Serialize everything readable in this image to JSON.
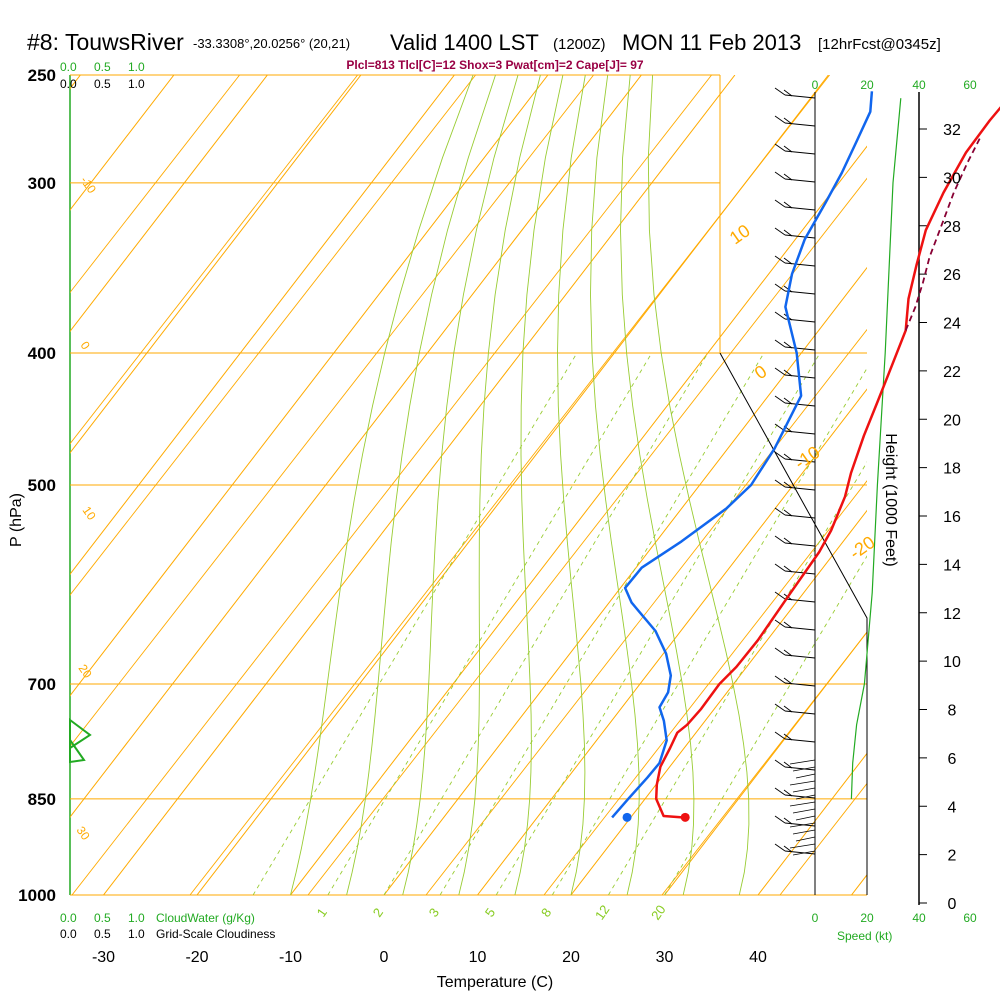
{
  "header": {
    "station": "#8: TouwsRiver",
    "coords": "-33.3308°,20.0256° (20,21)",
    "valid": "Valid 1400 LST",
    "zulu": "(1200Z)",
    "date": "MON 11 Feb 2013",
    "forecast": "[12hrFcst@0345z]",
    "indices": "Plcl=813 Tlcl[C]=12 Shox=3 Pwat[cm]=2 Cape[J]= 97"
  },
  "axes": {
    "xlabel": "Temperature (C)",
    "ylabel": "P (hPa)",
    "height_label": "Height (1000 Feet)",
    "speed_label": "Speed (kt)",
    "cloudwater_label": "CloudWater (g/Kg)",
    "cloudiness_label": "Grid-Scale Cloudiness",
    "cloudwater_ticks": [
      "0.0",
      "0.5",
      "1.0"
    ],
    "cloudiness_ticks": [
      "0.0",
      "0.5",
      "1.0"
    ],
    "speed_ticks": [
      "0",
      "20",
      "40",
      "60"
    ]
  },
  "chart_data": {
    "type": "line",
    "title": "#8: TouwsRiver Valid 1400 LST MON 11 Feb 2013",
    "xlabel": "Temperature (C)",
    "ylabel": "P (hPa)",
    "x_range": [
      -35,
      47
    ],
    "p_range": [
      250,
      1000
    ],
    "temp_ticks": [
      -30,
      -20,
      -10,
      0,
      10,
      20,
      30,
      40
    ],
    "pressure_ticks": [
      250,
      300,
      400,
      500,
      700,
      850,
      1000
    ],
    "height_ticks_kft": [
      0,
      2,
      4,
      6,
      8,
      10,
      12,
      14,
      16,
      18,
      20,
      22,
      24,
      26,
      28,
      30,
      32
    ],
    "dry_adiabat_labels": [
      "-10",
      "0",
      "10",
      "20",
      "30",
      "10",
      "0",
      "-10",
      "-20",
      "-30"
    ],
    "mixing_ratio_labels": [
      "1",
      "2",
      "3",
      "5",
      "8",
      "12",
      "20"
    ],
    "series": [
      {
        "name": "Temperature",
        "color": "#ee1111",
        "points": [
          [
            25.5,
            877
          ],
          [
            23.4,
            875
          ],
          [
            21.2,
            850
          ],
          [
            20.1,
            830
          ],
          [
            19.0,
            805
          ],
          [
            18.5,
            780
          ],
          [
            18.0,
            760
          ],
          [
            18.4,
            750
          ],
          [
            18.6,
            730
          ],
          [
            18.5,
            700
          ],
          [
            18.9,
            680
          ],
          [
            19.0,
            650
          ],
          [
            18.6,
            600
          ],
          [
            18.3,
            560
          ],
          [
            17.8,
            540
          ],
          [
            16.5,
            510
          ],
          [
            15.2,
            490
          ],
          [
            13.5,
            460
          ],
          [
            12.2,
            435
          ],
          [
            10.8,
            410
          ],
          [
            9.3,
            385
          ],
          [
            7.0,
            365
          ],
          [
            5.1,
            345
          ],
          [
            3.2,
            325
          ],
          [
            2.0,
            305
          ],
          [
            1.1,
            285
          ],
          [
            1.0,
            270
          ],
          [
            1.2,
            258
          ]
        ]
      },
      {
        "name": "Dewpoint",
        "color": "#1166ee",
        "points": [
          [
            18.0,
            877
          ],
          [
            18.2,
            850
          ],
          [
            18.5,
            820
          ],
          [
            18.6,
            800
          ],
          [
            17.5,
            770
          ],
          [
            15.6,
            745
          ],
          [
            14.0,
            728
          ],
          [
            13.7,
            710
          ],
          [
            12.6,
            690
          ],
          [
            10.3,
            665
          ],
          [
            7.3,
            640
          ],
          [
            2.4,
            610
          ],
          [
            0.5,
            595
          ],
          [
            0.6,
            575
          ],
          [
            2.7,
            550
          ],
          [
            4.8,
            520
          ],
          [
            5.5,
            500
          ],
          [
            5.0,
            470
          ],
          [
            3.5,
            430
          ],
          [
            -0.5,
            400
          ],
          [
            -5.5,
            370
          ],
          [
            -7.5,
            350
          ],
          [
            -9.0,
            330
          ],
          [
            -9.8,
            310
          ],
          [
            -10.5,
            295
          ],
          [
            -11.5,
            280
          ],
          [
            -12.5,
            266
          ],
          [
            -14.0,
            257
          ]
        ]
      },
      {
        "name": "Parcel",
        "color": "#880033",
        "points": [
          [
            9.3,
            385
          ],
          [
            8.4,
            370
          ],
          [
            7.2,
            355
          ],
          [
            5.8,
            340
          ],
          [
            4.3,
            320
          ],
          [
            3.1,
            305
          ],
          [
            2.1,
            290
          ],
          [
            1.4,
            278
          ]
        ]
      }
    ],
    "surface_temp": 25.5,
    "surface_dewpoint": 18.0,
    "wind_speed_profile_kt": [
      [
        14,
        850
      ],
      [
        14.5,
        800
      ],
      [
        16,
        750
      ],
      [
        19,
        700
      ],
      [
        22,
        600
      ],
      [
        24,
        500
      ],
      [
        27,
        400
      ],
      [
        30,
        300
      ],
      [
        33,
        260
      ]
    ],
    "legend": "none"
  }
}
